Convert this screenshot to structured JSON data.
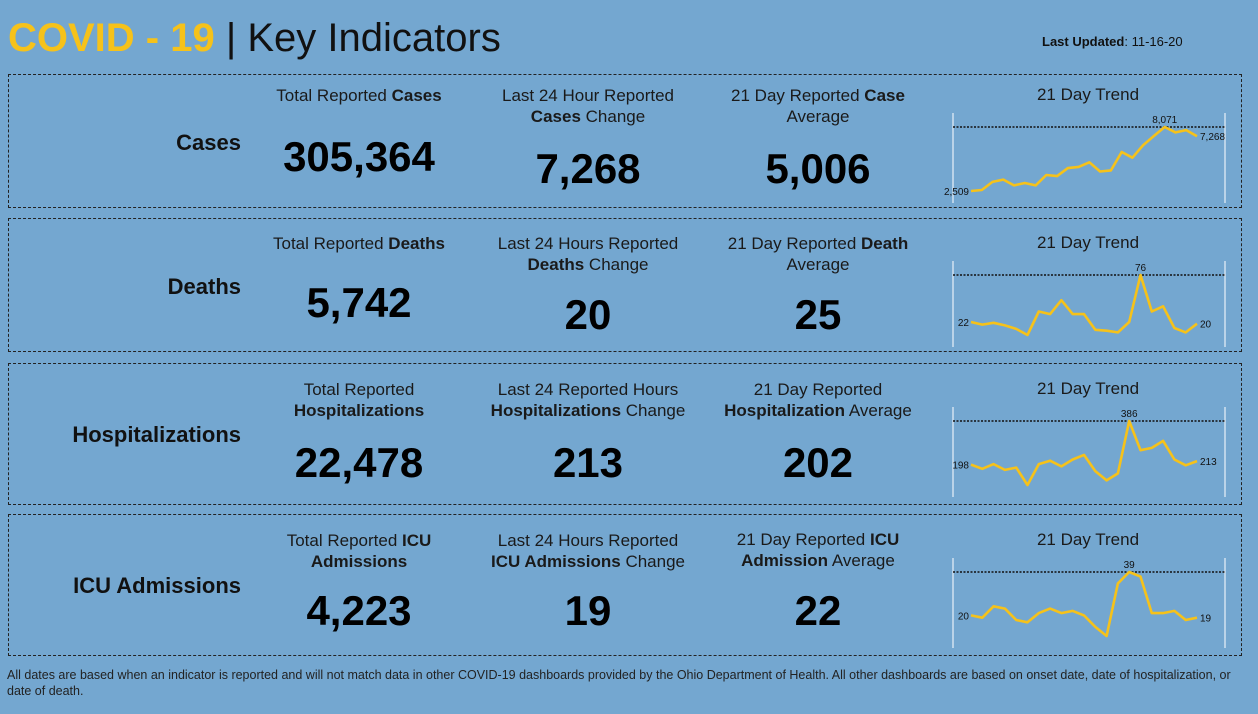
{
  "header": {
    "title_highlight": "COVID - 19",
    "separator": "|",
    "subtitle": "Key Indicators",
    "updated_label": "Last Updated",
    "updated_value": ": 11-16-20"
  },
  "colors": {
    "background": "#74A7D0",
    "accent": "#F6C21A",
    "line": "#F6C21A"
  },
  "rows": [
    {
      "label": "Cases",
      "total": {
        "pre": "Total Reported ",
        "bold": "Cases",
        "post": "",
        "value": "305,364"
      },
      "change": {
        "line1": "Last 24 Hour Reported",
        "bold": "Cases",
        "post": " Change",
        "value": "7,268"
      },
      "avg": {
        "pre": "21 Day Reported ",
        "bold": "Case",
        "post": "Average",
        "value": "5,006"
      },
      "trend": {
        "title": "21 Day Trend",
        "start_label": "2,509",
        "peak_label": "8,071",
        "end_label": "7,268",
        "values": [
          2509,
          2600,
          3300,
          3500,
          3000,
          3200,
          3000,
          3900,
          3800,
          4500,
          4600,
          5000,
          4200,
          4300,
          5900,
          5400,
          6500,
          7300,
          8071,
          7600,
          7800,
          7268
        ]
      }
    },
    {
      "label": "Deaths",
      "total": {
        "pre": "Total Reported ",
        "bold": "Deaths",
        "post": "",
        "value": "5,742"
      },
      "change": {
        "line1": "Last 24 Hours Reported",
        "bold": "Deaths",
        "post": " Change",
        "value": "20"
      },
      "avg": {
        "pre": "21 Day Reported ",
        "bold": "Death",
        "post": "Average",
        "value": "25"
      },
      "trend": {
        "title": "21 Day Trend",
        "start_label": "22",
        "peak_label": "76",
        "end_label": "20",
        "values": [
          22,
          19,
          21,
          18,
          14,
          7,
          34,
          31,
          47,
          31,
          31,
          13,
          12,
          10,
          22,
          76,
          34,
          40,
          15,
          10,
          20
        ]
      }
    },
    {
      "label": "Hospitalizations",
      "total": {
        "pre": "Total Reported",
        "bold": "Hospitalizations",
        "post": "",
        "value": "22,478"
      },
      "change": {
        "line1": "Last 24 Reported Hours",
        "bold": "Hospitalizations",
        "post": " Change",
        "value": "213"
      },
      "avg": {
        "pre": "21 Day Reported",
        "bold": "Hospitalization",
        "post": " Average",
        "value": "202"
      },
      "trend": {
        "title": "21 Day Trend",
        "start_label": "198",
        "peak_label": "386",
        "end_label": "213",
        "values": [
          198,
          180,
          200,
          175,
          185,
          110,
          200,
          215,
          190,
          220,
          240,
          170,
          130,
          160,
          386,
          260,
          270,
          300,
          220,
          195,
          213
        ]
      }
    },
    {
      "label": "ICU Admissions",
      "total": {
        "pre": "Total Reported ",
        "bold": "ICU",
        "post2": "Admissions",
        "value": "4,223"
      },
      "change": {
        "line1": "Last 24 Hours Reported",
        "bold": "ICU Admissions",
        "post": " Change",
        "value": "19"
      },
      "avg": {
        "pre": "21 Day Reported ",
        "bold": "ICU",
        "bold2": "Admission",
        "post": " Average",
        "value": "22"
      },
      "trend": {
        "title": "21 Day Trend",
        "start_label": "20",
        "peak_label": "39",
        "end_label": "19",
        "values": [
          20,
          19,
          24,
          23,
          18,
          17,
          21,
          23,
          21,
          22,
          20,
          15,
          11,
          34,
          39,
          37,
          21,
          21,
          22,
          18,
          19
        ]
      }
    }
  ],
  "footer": "All dates are based when an indicator is reported and will not match data in other COVID-19 dashboards provided by the Ohio Department of Health. All other dashboards are based on onset date, date of hospitalization, or date of death."
}
